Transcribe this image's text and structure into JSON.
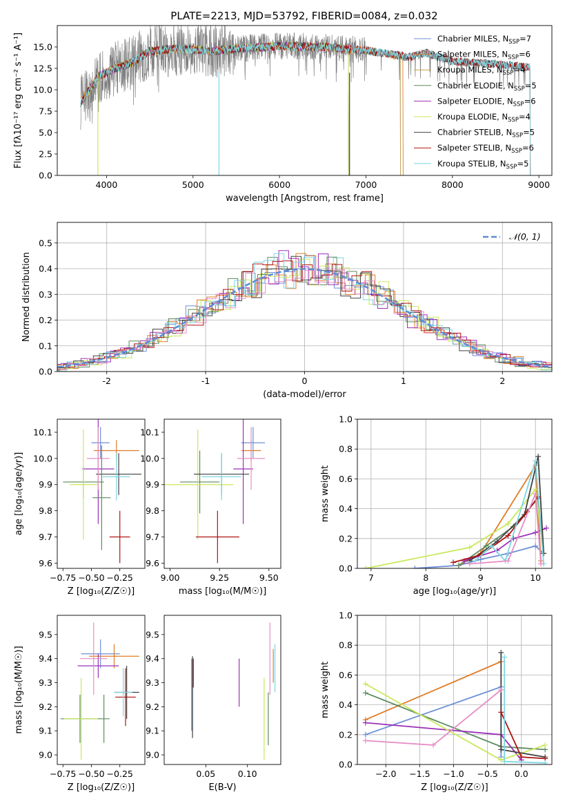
{
  "title": "PLATE=2213, MJD=53792, FIBERID=0084, z=0.032",
  "colors": [
    "#6b8fd6",
    "#e07b26",
    "#5b8a5e",
    "#9b2fb8",
    "#c9e85a",
    "#404040",
    "#b01010",
    "#7fd6e0",
    "#e68cc4"
  ],
  "chart_data": [
    {
      "name": "spectrum",
      "type": "line",
      "xlabel": "wavelength [Angstrom, rest frame]",
      "ylabel": "Flux [f$_\\lambda$10$^{-17}$ erg cm$^{-2}$ s$^{-1}$ A$^{-1}$]",
      "ylabel_text": "Flux [fλ10⁻¹⁷ erg cm⁻² s⁻¹ A⁻¹]",
      "xlim": [
        3430,
        9150
      ],
      "ylim": [
        0,
        17.5
      ],
      "xticks": [
        4000,
        5000,
        6000,
        7000,
        8000,
        9000
      ],
      "yticks": [
        0.0,
        2.5,
        5.0,
        7.5,
        10.0,
        12.5,
        15.0
      ],
      "legend": "upper-right",
      "x_range": [
        3700,
        8900
      ],
      "continuum": [
        [
          3700,
          8.5
        ],
        [
          3800,
          10
        ],
        [
          3900,
          11.5
        ],
        [
          4000,
          12
        ],
        [
          4100,
          12.5
        ],
        [
          4300,
          13.2
        ],
        [
          4500,
          14.5
        ],
        [
          4800,
          14.8
        ],
        [
          5000,
          14.7
        ],
        [
          5200,
          14.5
        ],
        [
          5500,
          14.8
        ],
        [
          6000,
          15.1
        ],
        [
          6500,
          15.0
        ],
        [
          7000,
          14.6
        ],
        [
          7500,
          13.8
        ],
        [
          7700,
          14.3
        ],
        [
          8000,
          13.3
        ],
        [
          8500,
          13.0
        ],
        [
          8900,
          12.6
        ]
      ],
      "series": [
        {
          "name": "Chabrier MILES, N$_{SSP}$=7",
          "label": "Chabrier MILES, N",
          "sub": "SSP",
          "eq": "=7",
          "color_index": 0,
          "xmax": 7400
        },
        {
          "name": "Salpeter MILES, N$_{SSP}$=6",
          "label": "Salpeter MILES, N",
          "sub": "SSP",
          "eq": "=6",
          "color_index": 1,
          "xmax": 7430
        },
        {
          "name": "Kroupa MILES, N$_{SSP}$=4",
          "label": "Kroupa MILES, N",
          "sub": "SSP",
          "eq": "=4",
          "color_index": 9,
          "xmax": 7400
        },
        {
          "name": "Chabrier ELODIE, N$_{SSP}$=5",
          "label": "Chabrier ELODIE, N",
          "sub": "SSP",
          "eq": "=5",
          "color_index": 2,
          "xmax": 6800
        },
        {
          "name": "Salpeter ELODIE, N$_{SSP}$=6",
          "label": "Salpeter ELODIE, N",
          "sub": "SSP",
          "eq": "=6",
          "color_index": 3,
          "xmax": 6800
        },
        {
          "name": "Kroupa ELODIE, N$_{SSP}$=4",
          "label": "Kroupa ELODIE, N",
          "sub": "SSP",
          "eq": "=4",
          "color_index": 4,
          "xmax": 6800
        },
        {
          "name": "Chabrier STELIB, N$_{SSP}$=5",
          "label": "Chabrier STELIB, N",
          "sub": "SSP",
          "eq": "=5",
          "color_index": 5,
          "xmax": 8900
        },
        {
          "name": "Salpeter STELIB, N$_{SSP}$=6",
          "label": "Salpeter STELIB, N",
          "sub": "SSP",
          "eq": "=6",
          "color_index": 6,
          "xmax": 8900
        },
        {
          "name": "Kroupa STELIB, N$_{SSP}$=5",
          "label": "Kroupa STELIB, N",
          "sub": "SSP",
          "eq": "=5",
          "color_index": 7,
          "xmax": 8900
        }
      ]
    },
    {
      "name": "residuals",
      "type": "histogram",
      "xlabel": "(data-model)/error",
      "ylabel": "Normed distribution",
      "xlim": [
        -2.5,
        2.5
      ],
      "ylim": [
        0,
        0.58
      ],
      "xticks": [
        -2,
        -1,
        0,
        1,
        2
      ],
      "yticks": [
        0.0,
        0.1,
        0.2,
        0.3,
        0.4,
        0.5
      ],
      "legend": "upper-right",
      "legend_label": "𝒩(0, 1)",
      "bin_width": 0.1
    },
    {
      "name": "age-vs-Z",
      "type": "errorbar",
      "xlabel": "Z [log₁₀(Z/Z☉)]",
      "ylabel": "age  [log₁₀(age/yr)]",
      "xlim": [
        -0.8,
        -0.03
      ],
      "ylim": [
        9.58,
        10.15
      ],
      "xticks": [
        -0.75,
        -0.5,
        -0.25
      ],
      "xticklabels": [
        "−0.75",
        "−0.50",
        "−0.25"
      ],
      "yticks": [
        9.6,
        9.7,
        9.8,
        9.9,
        10.0,
        10.1
      ],
      "points": [
        {
          "c": 0,
          "x": -0.42,
          "xe": 0.08,
          "y": 10.06,
          "ye": 0.06
        },
        {
          "c": 1,
          "x": -0.28,
          "xe": 0.2,
          "y": 10.03,
          "ye": 0.04
        },
        {
          "c": 2,
          "x": -0.57,
          "xe": 0.18,
          "y": 9.91,
          "ye": 0.06
        },
        {
          "c": 3,
          "x": -0.44,
          "xe": 0.14,
          "y": 9.96,
          "ye": 0.21
        },
        {
          "c": 4,
          "x": -0.57,
          "xe": 0.12,
          "y": 9.9,
          "ye": 0.21
        },
        {
          "c": 5,
          "x": -0.26,
          "xe": 0.2,
          "y": 9.94,
          "ye": 0.08
        },
        {
          "c": 6,
          "x": -0.25,
          "xe": 0.09,
          "y": 9.7,
          "ye": 0.1
        },
        {
          "c": 7,
          "x": -0.28,
          "xe": 0.12,
          "y": 9.93,
          "ye": 0.09
        },
        {
          "c": 8,
          "x": -0.44,
          "xe": 0.1,
          "y": 10.0,
          "ye": 0.12
        },
        {
          "c": 2,
          "x": -0.41,
          "xe": 0.08,
          "y": 9.85,
          "ye": 0.2
        }
      ]
    },
    {
      "name": "age-vs-mass",
      "type": "errorbar",
      "xlabel": "mass [log₁₀(M/M☉)]",
      "ylabel": "",
      "xlim": [
        8.97,
        9.56
      ],
      "ylim": [
        9.58,
        10.15
      ],
      "xticks": [
        9.0,
        9.25,
        9.5
      ],
      "xticklabels": [
        "9.00",
        "9.25",
        "9.50"
      ],
      "yticks": [
        9.6,
        9.7,
        9.8,
        9.9,
        10.0,
        10.1
      ],
      "points": [
        {
          "c": 0,
          "x": 9.42,
          "xe": 0.06,
          "y": 10.06,
          "ye": 0.06
        },
        {
          "c": 1,
          "x": 9.41,
          "xe": 0.05,
          "y": 10.03,
          "ye": 0.04
        },
        {
          "c": 2,
          "x": 9.15,
          "xe": 0.1,
          "y": 9.91,
          "ye": 0.12
        },
        {
          "c": 3,
          "x": 9.37,
          "xe": 0.05,
          "y": 9.96,
          "ye": 0.21
        },
        {
          "c": 4,
          "x": 9.14,
          "xe": 0.18,
          "y": 9.9,
          "ye": 0.21
        },
        {
          "c": 5,
          "x": 9.26,
          "xe": 0.14,
          "y": 9.94,
          "ye": 0.08
        },
        {
          "c": 6,
          "x": 9.24,
          "xe": 0.11,
          "y": 9.7,
          "ye": 0.1
        },
        {
          "c": 7,
          "x": 9.26,
          "xe": 0.1,
          "y": 9.93,
          "ye": 0.09
        },
        {
          "c": 8,
          "x": 9.41,
          "xe": 0.07,
          "y": 10.0,
          "ye": 0.12
        }
      ]
    },
    {
      "name": "weight-vs-age",
      "type": "line",
      "xlabel": "age  [log₁₀(age/yr)]",
      "ylabel": "mass weight",
      "xlim": [
        6.75,
        10.3
      ],
      "ylim": [
        0,
        1.0
      ],
      "xticks": [
        7,
        8,
        9,
        10
      ],
      "yticks": [
        0.0,
        0.2,
        0.4,
        0.6,
        0.8,
        1.0
      ],
      "series": [
        {
          "c": 0,
          "x": [
            7.8,
            8.6,
            9.0,
            9.5,
            10.0,
            10.15
          ],
          "y": [
            0.0,
            0.02,
            0.06,
            0.1,
            0.15,
            0.1
          ]
        },
        {
          "c": 1,
          "x": [
            8.6,
            9.0,
            10.0,
            10.1
          ],
          "y": [
            0.02,
            0.1,
            0.69,
            0.05
          ]
        },
        {
          "c": 2,
          "x": [
            8.6,
            9.1,
            9.6,
            10.05,
            10.15
          ],
          "y": [
            0.02,
            0.15,
            0.28,
            0.47,
            0.1
          ]
        },
        {
          "c": 3,
          "x": [
            8.7,
            9.3,
            9.6,
            10.0,
            10.2
          ],
          "y": [
            0.05,
            0.12,
            0.2,
            0.24,
            0.27
          ]
        },
        {
          "c": 4,
          "x": [
            6.9,
            8.8,
            9.5,
            10.0,
            10.15
          ],
          "y": [
            0.0,
            0.14,
            0.3,
            0.53,
            0.1
          ]
        },
        {
          "c": 5,
          "x": [
            8.8,
            9.3,
            9.8,
            10.05,
            10.15
          ],
          "y": [
            0.05,
            0.18,
            0.36,
            0.75,
            0.1
          ]
        },
        {
          "c": 6,
          "x": [
            8.5,
            9.0,
            9.5,
            9.85,
            10.05
          ],
          "y": [
            0.04,
            0.09,
            0.22,
            0.38,
            0.48
          ]
        },
        {
          "c": 7,
          "x": [
            8.9,
            9.2,
            9.45,
            10.0,
            10.15
          ],
          "y": [
            0.05,
            0.15,
            0.05,
            0.72,
            0.03
          ]
        },
        {
          "c": 8,
          "x": [
            8.8,
            9.5,
            10.0,
            10.1
          ],
          "y": [
            0.03,
            0.05,
            0.5,
            0.03
          ]
        }
      ]
    },
    {
      "name": "mass-vs-Z",
      "type": "errorbar",
      "xlabel": "Z [log₁₀(Z/Z☉)]",
      "ylabel": "mass [log₁₀(M/M☉)]",
      "xlim": [
        -0.8,
        -0.03
      ],
      "ylim": [
        8.96,
        9.58
      ],
      "xticks": [
        -0.75,
        -0.5,
        -0.25
      ],
      "xticklabels": [
        "−0.75",
        "−0.50",
        "−0.25"
      ],
      "yticks": [
        9.0,
        9.1,
        9.2,
        9.3,
        9.4,
        9.5
      ],
      "points": [
        {
          "c": 0,
          "x": -0.42,
          "xe": 0.17,
          "y": 9.42,
          "ye": 0.06
        },
        {
          "c": 1,
          "x": -0.3,
          "xe": 0.22,
          "y": 9.41,
          "ye": 0.05
        },
        {
          "c": 2,
          "x": -0.6,
          "xe": 0.17,
          "y": 9.15,
          "ye": 0.1
        },
        {
          "c": 3,
          "x": -0.44,
          "xe": 0.18,
          "y": 9.37,
          "ye": 0.05
        },
        {
          "c": 4,
          "x": -0.59,
          "xe": 0.15,
          "y": 9.15,
          "ye": 0.17
        },
        {
          "c": 5,
          "x": -0.19,
          "xe": 0.11,
          "y": 9.26,
          "ye": 0.11
        },
        {
          "c": 6,
          "x": -0.2,
          "xe": 0.09,
          "y": 9.24,
          "ye": 0.12
        },
        {
          "c": 7,
          "x": -0.22,
          "xe": 0.08,
          "y": 9.26,
          "ye": 0.1
        },
        {
          "c": 8,
          "x": -0.48,
          "xe": 0.12,
          "y": 9.4,
          "ye": 0.15
        },
        {
          "c": 2,
          "x": -0.39,
          "xe": 0.05,
          "y": 9.15,
          "ye": 0.1
        }
      ]
    },
    {
      "name": "mass-vs-ebv",
      "type": "errorbar",
      "xlabel": "E(B-V)",
      "ylabel": "",
      "xlim": [
        0.0,
        0.14
      ],
      "ylim": [
        8.96,
        9.58
      ],
      "xticks": [
        0.05,
        0.1
      ],
      "xticklabels": [
        "0.05",
        "0.10"
      ],
      "yticks": [
        9.0,
        9.1,
        9.2,
        9.3,
        9.4,
        9.5
      ],
      "points": [
        {
          "c": 0,
          "x": 0.033,
          "y": 9.25,
          "ye": 0.15
        },
        {
          "c": 1,
          "x": 0.131,
          "y": 9.37,
          "ye": 0.07
        },
        {
          "c": 2,
          "x": 0.125,
          "y": 9.15,
          "ye": 0.11
        },
        {
          "c": 3,
          "x": 0.09,
          "y": 9.3,
          "ye": 0.1
        },
        {
          "c": 4,
          "x": 0.12,
          "y": 9.15,
          "ye": 0.17
        },
        {
          "c": 5,
          "x": 0.034,
          "y": 9.24,
          "ye": 0.17
        },
        {
          "c": 6,
          "x": 0.035,
          "y": 9.34,
          "ye": 0.06
        },
        {
          "c": 7,
          "x": 0.133,
          "y": 9.36,
          "ye": 0.1
        },
        {
          "c": 8,
          "x": 0.127,
          "y": 9.4,
          "ye": 0.15
        }
      ]
    },
    {
      "name": "weight-vs-Z",
      "type": "line",
      "xlabel": "Z [log₁₀(Z/Z☉)]",
      "ylabel": "mass weight",
      "xlim": [
        -2.42,
        0.45
      ],
      "ylim": [
        0,
        1.0
      ],
      "xticks": [
        -2.0,
        -1.5,
        -1.0,
        -0.5,
        0.0
      ],
      "xticklabels": [
        "−2.0",
        "−1.5",
        "−1.0",
        "−0.5",
        "0.0"
      ],
      "yticks": [
        0.0,
        0.2,
        0.4,
        0.6,
        0.8,
        1.0
      ],
      "series": [
        {
          "c": 0,
          "x": [
            -2.3,
            -0.3,
            -0.3
          ],
          "y": [
            0.2,
            0.52,
            0.05
          ]
        },
        {
          "c": 1,
          "x": [
            -2.3,
            -0.3
          ],
          "y": [
            0.3,
            0.69
          ]
        },
        {
          "c": 2,
          "x": [
            -2.3,
            -0.3,
            0.35
          ],
          "y": [
            0.48,
            0.12,
            0.1
          ]
        },
        {
          "c": 3,
          "x": [
            -2.3,
            -0.3,
            0.0
          ],
          "y": [
            0.28,
            0.2,
            0.03
          ]
        },
        {
          "c": 4,
          "x": [
            -2.3,
            -0.3,
            0.35
          ],
          "y": [
            0.54,
            0.03,
            0.13
          ]
        },
        {
          "c": 5,
          "x": [
            -0.3,
            -0.3,
            0.35
          ],
          "y": [
            0.75,
            0.1,
            0.05
          ]
        },
        {
          "c": 6,
          "x": [
            -0.3,
            0.0,
            0.35
          ],
          "y": [
            0.35,
            0.05,
            0.04
          ]
        },
        {
          "c": 7,
          "x": [
            -0.25,
            -0.25,
            0.35
          ],
          "y": [
            0.72,
            0.02,
            0.01
          ]
        },
        {
          "c": 8,
          "x": [
            -2.3,
            -1.3,
            -0.3
          ],
          "y": [
            0.16,
            0.13,
            0.5
          ]
        }
      ]
    }
  ]
}
